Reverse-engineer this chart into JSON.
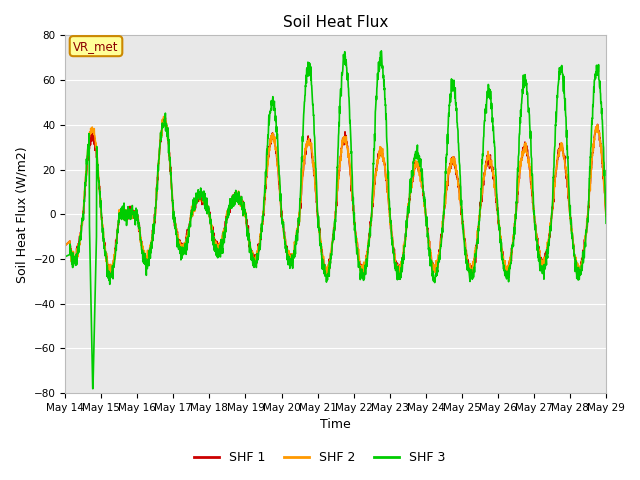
{
  "title": "Soil Heat Flux",
  "ylabel": "Soil Heat Flux (W/m2)",
  "xlabel": "Time",
  "ylim": [
    -80,
    80
  ],
  "plot_bg_color": "#e8e8e8",
  "fig_bg_color": "#ffffff",
  "grid_color": "#ffffff",
  "legend_label": "VR_met",
  "legend_bg": "#ffff99",
  "legend_border": "#cc8800",
  "series_colors": [
    "#cc0000",
    "#ff9900",
    "#00cc00"
  ],
  "series_labels": [
    "SHF 1",
    "SHF 2",
    "SHF 3"
  ],
  "line_width": 1.2,
  "title_fontsize": 11,
  "tick_fontsize": 7.5,
  "label_fontsize": 9,
  "n_days": 15,
  "points_per_day": 144
}
